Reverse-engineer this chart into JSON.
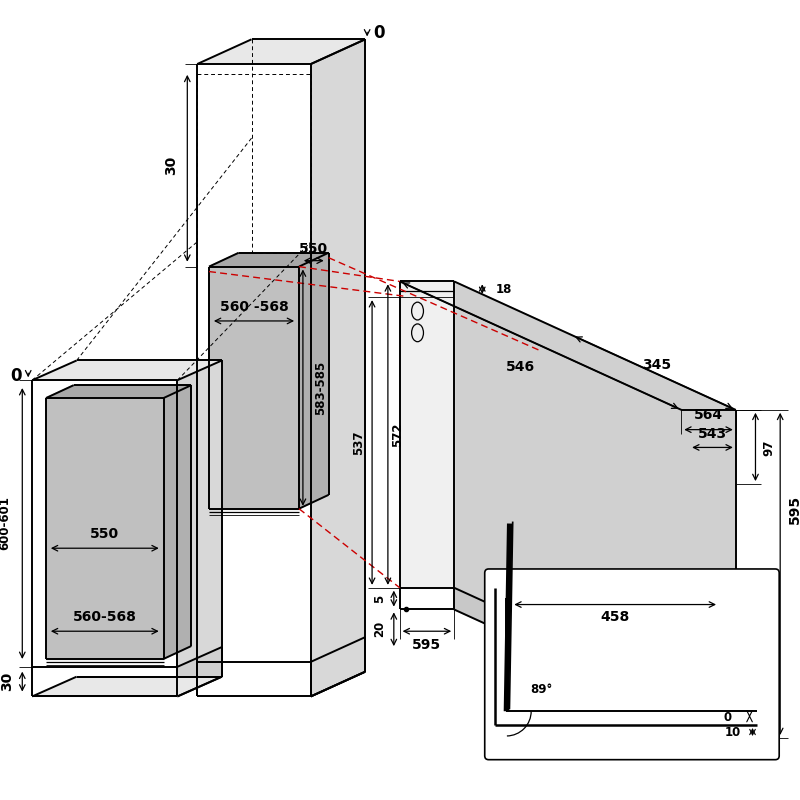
{
  "bg_color": "#ffffff",
  "lc": "#000000",
  "rc": "#cc0000",
  "gf": "#c0c0c0",
  "gf2": "#d8d8d8",
  "gf3": "#e8e8e8",
  "fs_large": 10,
  "fs_med": 8.5,
  "fs_small": 7.5
}
